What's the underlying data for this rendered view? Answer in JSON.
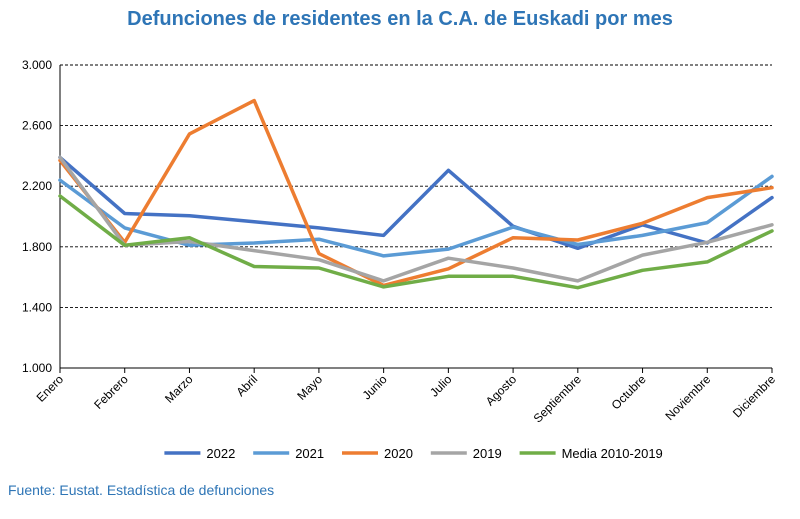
{
  "chart_data": {
    "type": "line",
    "title": "Defunciones de residentes en la C.A. de Euskadi por mes",
    "xlabel": "",
    "ylabel": "",
    "ylim": [
      1000,
      3000
    ],
    "yticks": [
      1000,
      1400,
      1800,
      2200,
      2600,
      3000
    ],
    "ytick_labels": [
      "1.000",
      "1.400",
      "1.800",
      "2.200",
      "2.600",
      "3.000"
    ],
    "grid": "horizontal dashed",
    "legend": "bottom",
    "categories": [
      "Enero",
      "Febrero",
      "Marzo",
      "Abril",
      "Mayo",
      "Junio",
      "Julio",
      "Agosto",
      "Septiembre",
      "Octubre",
      "Noviembre",
      "Diciembre"
    ],
    "series": [
      {
        "name": "2022",
        "color": "#4472C4",
        "values": [
          2390,
          2020,
          2005,
          1965,
          1925,
          1875,
          2305,
          1935,
          1790,
          1945,
          1825,
          2125
        ]
      },
      {
        "name": "2021",
        "color": "#5B9BD5",
        "values": [
          2240,
          1925,
          1810,
          1825,
          1850,
          1740,
          1785,
          1930,
          1815,
          1875,
          1960,
          2265
        ]
      },
      {
        "name": "2020",
        "color": "#ED7D31",
        "values": [
          2370,
          1830,
          2545,
          2765,
          1755,
          1545,
          1655,
          1860,
          1845,
          1955,
          2125,
          2190
        ]
      },
      {
        "name": "2019",
        "color": "#A5A5A5",
        "values": [
          2390,
          1810,
          1835,
          1775,
          1715,
          1575,
          1725,
          1660,
          1575,
          1745,
          1830,
          1945
        ]
      },
      {
        "name": "Media 2010-2019",
        "color": "#70AD47",
        "values": [
          2135,
          1810,
          1860,
          1670,
          1660,
          1535,
          1605,
          1605,
          1530,
          1645,
          1700,
          1905
        ]
      }
    ]
  },
  "source_note": "Fuente: Eustat. Estadística de defunciones"
}
